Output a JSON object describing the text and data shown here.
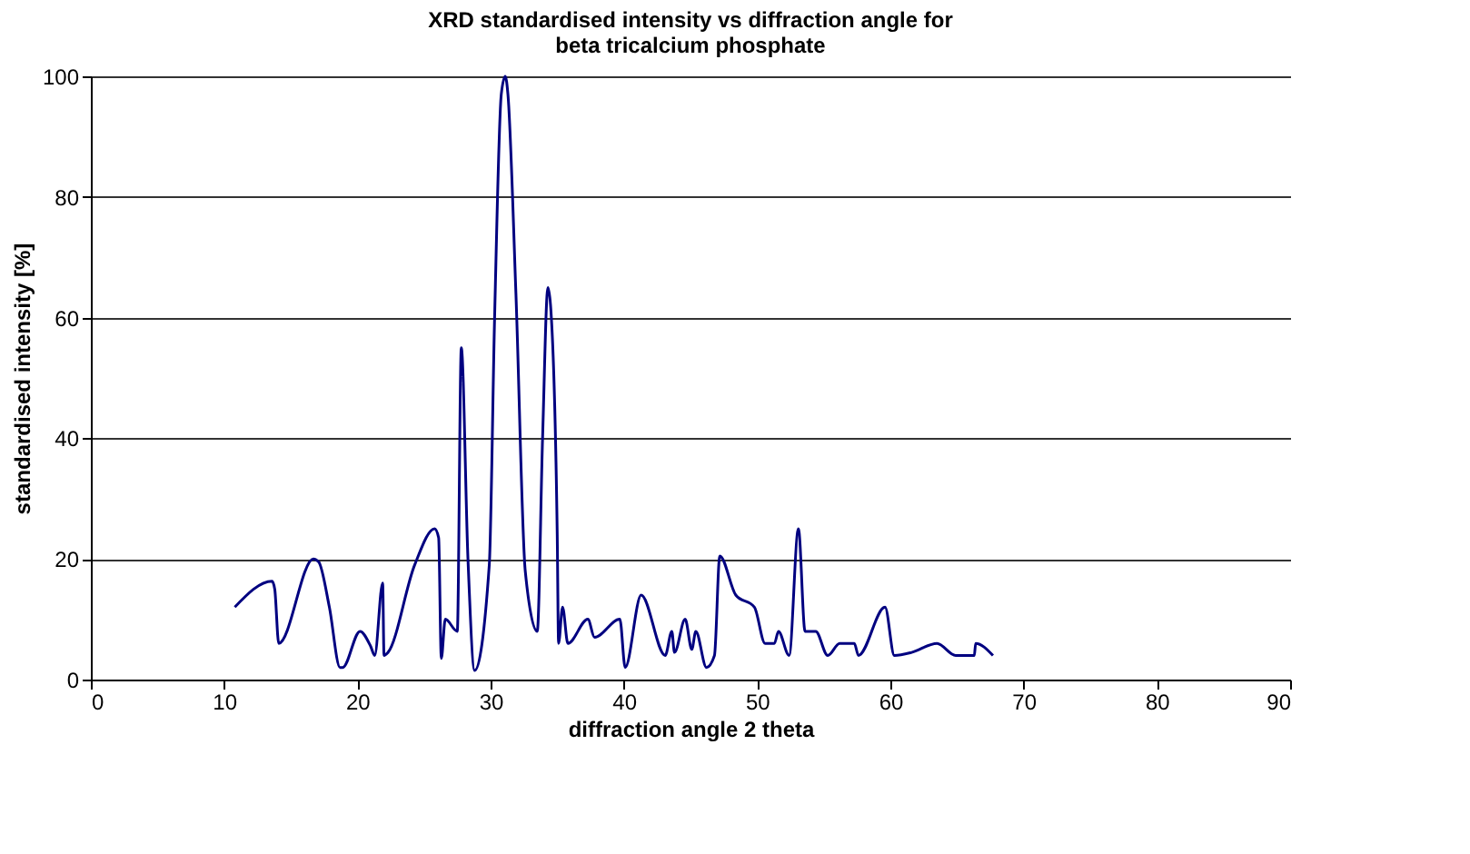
{
  "chart_data": {
    "type": "line",
    "title": "XRD standardised intensity vs diffraction angle for beta tricalcium phosphate",
    "xlabel": "diffraction angle 2 theta",
    "ylabel": "standardised  intensity  [%]",
    "xlim": [
      0,
      90
    ],
    "xticks": [
      0,
      10,
      20,
      30,
      40,
      50,
      60,
      70,
      80,
      90
    ],
    "ylim": [
      0,
      100
    ],
    "yticks": [
      0,
      20,
      40,
      60,
      80,
      100
    ],
    "grid": "y",
    "marker": "none",
    "line_style": "solid",
    "series": [
      {
        "color": "#000080",
        "x": [
          10.8,
          13.6,
          13.8,
          14.1,
          16.7,
          17.1,
          17.9,
          18.7,
          18.9,
          20.2,
          21.0,
          21.3,
          21.9,
          22.0,
          22.3,
          24.3,
          25.8,
          26.1,
          26.3,
          26.6,
          27.5,
          27.8,
          28.3,
          28.8,
          29.9,
          30.3,
          30.8,
          31.1,
          31.3,
          31.9,
          32.6,
          33.5,
          33.9,
          34.3,
          34.5,
          35.0,
          35.1,
          35.4,
          35.8,
          37.3,
          37.8,
          39.7,
          40.1,
          41.3,
          43.1,
          43.6,
          43.8,
          44.6,
          45.1,
          45.4,
          46.2,
          46.8,
          47.2,
          48.4,
          49.8,
          50.6,
          51.3,
          51.6,
          52.4,
          53.1,
          53.6,
          54.4,
          55.3,
          56.2,
          57.3,
          57.6,
          59.6,
          60.3,
          61.6,
          63.5,
          64.9,
          66.3,
          66.4,
          67.7
        ],
        "values": [
          12,
          16.3,
          15,
          6,
          20,
          19.5,
          12,
          2,
          2,
          8,
          5.5,
          4,
          16,
          4,
          4.5,
          19,
          25,
          23.5,
          3.5,
          10,
          8,
          55,
          20,
          1.5,
          19,
          60,
          97,
          100,
          97,
          64,
          18,
          8,
          40,
          65,
          62,
          24,
          6,
          12,
          6,
          10,
          7,
          10,
          2,
          14,
          4,
          8,
          4.5,
          10,
          5,
          8,
          2,
          4,
          20.5,
          14,
          12,
          6,
          6,
          8,
          4,
          25,
          8,
          8,
          4,
          6,
          6,
          4,
          12,
          4,
          4.5,
          6,
          4,
          4,
          6,
          4
        ]
      }
    ]
  }
}
